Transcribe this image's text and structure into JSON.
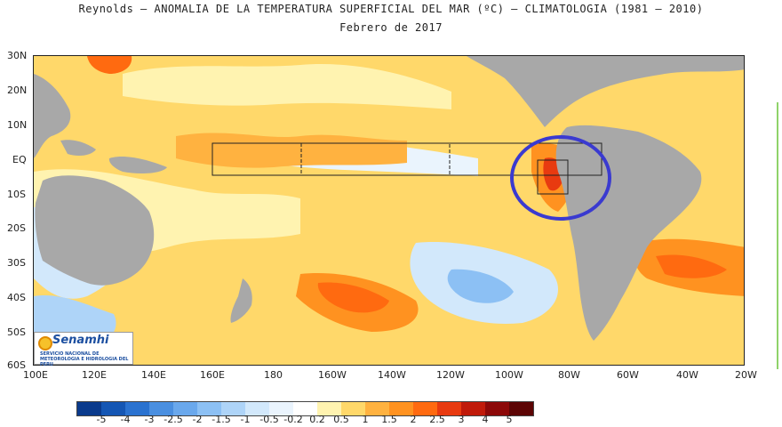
{
  "title": "Reynolds – ANOMALIA DE LA TEMPERATURA SUPERFICIAL DEL MAR (ºC) – CLIMATOLOGIA (1981 – 2010)",
  "subtitle": "Febrero de 2017",
  "axes": {
    "lat_labels": [
      "30N",
      "20N",
      "10N",
      "EQ",
      "10S",
      "20S",
      "30S",
      "40S",
      "50S",
      "60S"
    ],
    "lon_labels": [
      "100E",
      "120E",
      "140E",
      "160E",
      "180",
      "160W",
      "140W",
      "120W",
      "100W",
      "80W",
      "60W",
      "40W",
      "20W"
    ]
  },
  "logo": {
    "name": "Senamhi",
    "subtitle": "SERVICIO NACIONAL DE METEOROLOGIA E HIDROLOGIA DEL PERU"
  },
  "colorbar": {
    "labels": [
      "-5",
      "-4",
      "-3",
      "-2.5",
      "-2",
      "-1.5",
      "-1",
      "-0.5",
      "-0.2",
      "0.2",
      "0.5",
      "1",
      "1.5",
      "2",
      "2.5",
      "3",
      "4",
      "5"
    ],
    "colors": [
      "#0a3a8c",
      "#1456b4",
      "#2a72d0",
      "#4a8fe0",
      "#6aa8ec",
      "#8cc0f4",
      "#aed4f8",
      "#d2e8fb",
      "#eaf4fd",
      "#ffffff",
      "#fff3b0",
      "#ffd86a",
      "#ffb240",
      "#ff9220",
      "#ff6a10",
      "#e83a10",
      "#c01a0a",
      "#8c0808",
      "#5c0404"
    ]
  },
  "colors": {
    "land": "#a8a8a8",
    "annotation_circle": "#3a3ad0",
    "ocean_warm": "#ffb240",
    "ocean_cool": "#aed4f8"
  }
}
